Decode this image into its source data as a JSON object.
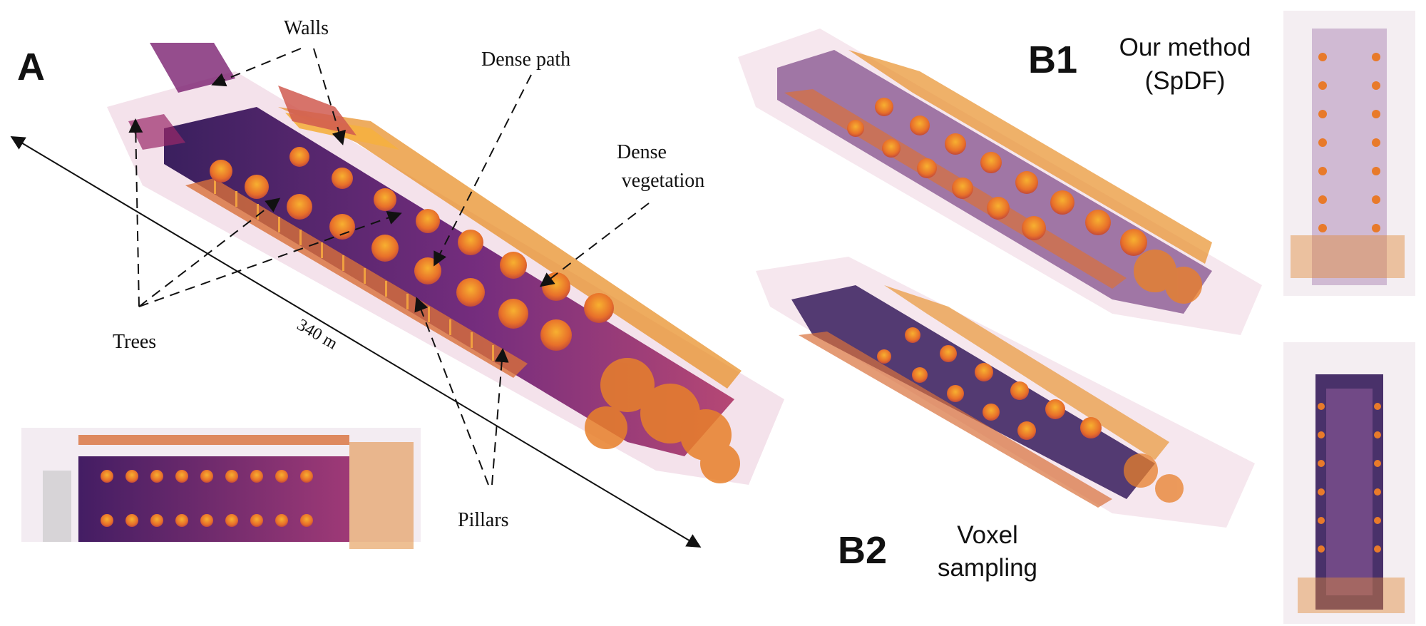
{
  "panels": {
    "a": {
      "letter": "A"
    },
    "b1": {
      "letter": "B1",
      "caption_line1": "Our method",
      "caption_line2": "(SpDF)"
    },
    "b2": {
      "letter": "B2",
      "caption_line1": "Voxel",
      "caption_line2": "sampling"
    }
  },
  "annotations": {
    "walls": "Walls",
    "dense_path": "Dense path",
    "dense_vegetation_line1": "Dense",
    "dense_vegetation_line2": "vegetation",
    "trees": "Trees",
    "pillars": "Pillars",
    "scale_length": "340 m"
  },
  "colors": {
    "point_cloud_low": "#2a0f52",
    "point_cloud_mid": "#8a2878",
    "point_cloud_high": "#f5a020",
    "background": "#ffffff"
  }
}
